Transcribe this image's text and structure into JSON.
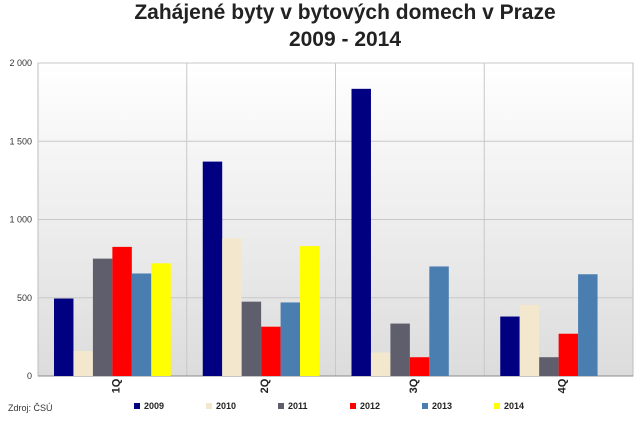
{
  "chart_data": {
    "type": "bar",
    "title": "Zahájené byty v bytových domech v Praze",
    "subtitle": "2009 - 2014",
    "categories": [
      "1Q",
      "2Q",
      "3Q",
      "4Q"
    ],
    "ylim": [
      0,
      2000
    ],
    "yticks": [
      0,
      500,
      1000,
      1500,
      2000
    ],
    "ytick_labels": [
      "0",
      "500",
      "1 000",
      "1 500",
      "2 000"
    ],
    "grid": true,
    "legend_position": "bottom",
    "source_note": "Zdroj: ČSÚ",
    "series": [
      {
        "name": "2009",
        "color": "#000080",
        "values": [
          495,
          1370,
          1835,
          380
        ]
      },
      {
        "name": "2010",
        "color": "#F3E7CE",
        "values": [
          160,
          880,
          150,
          455
        ]
      },
      {
        "name": "2011",
        "color": "#5F5E6D",
        "values": [
          750,
          475,
          335,
          120
        ]
      },
      {
        "name": "2012",
        "color": "#FF0000",
        "values": [
          825,
          315,
          120,
          270
        ]
      },
      {
        "name": "2013",
        "color": "#4A7DB0",
        "values": [
          655,
          470,
          700,
          650
        ]
      },
      {
        "name": "2014",
        "color": "#FFFF00",
        "values": [
          720,
          830,
          null,
          null
        ]
      }
    ]
  }
}
